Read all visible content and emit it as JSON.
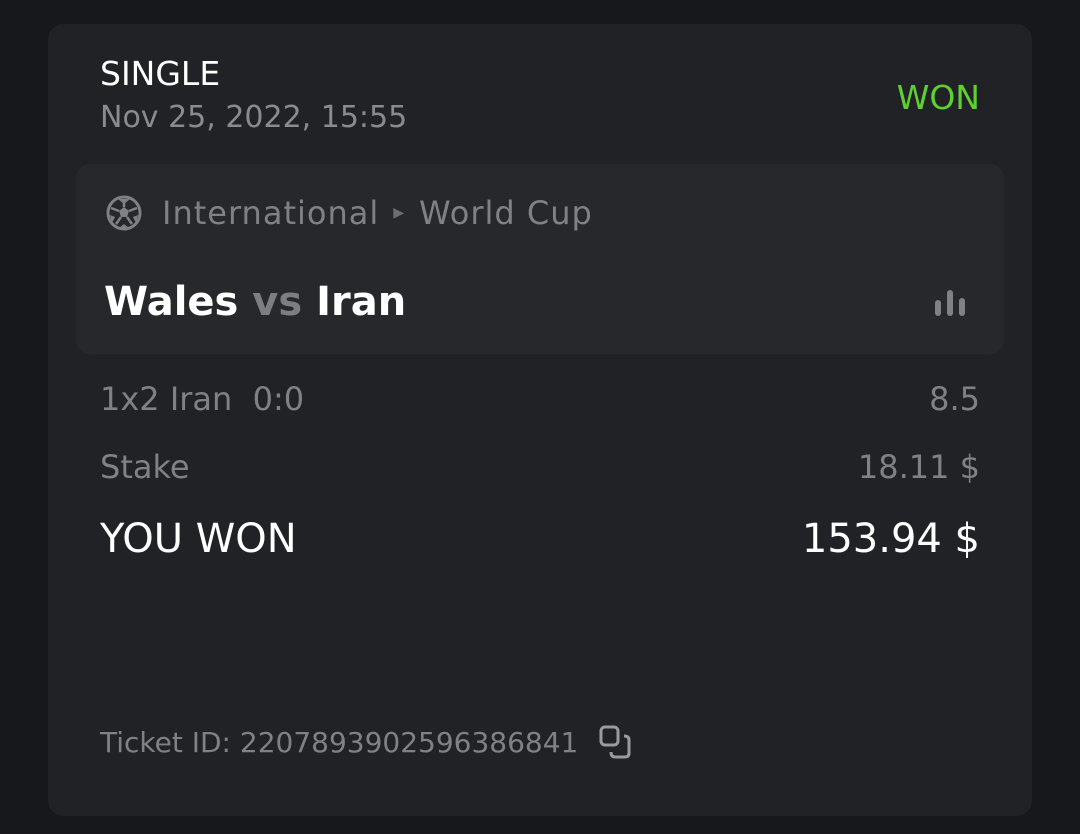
{
  "bet": {
    "type": "SINGLE",
    "date": "Nov 25, 2022, 15:55",
    "status": "WON",
    "status_color": "#5fd02f"
  },
  "event": {
    "sport_icon": "soccer-ball-icon",
    "category": "International",
    "tournament": "World Cup",
    "home": "Wales",
    "vs": "vs",
    "away": "Iran",
    "stats_icon": "bar-chart-icon"
  },
  "selection": {
    "market": "1x2 Iran",
    "score": "0:0",
    "odds": "8.5"
  },
  "stake": {
    "label": "Stake",
    "value": "18.11 $"
  },
  "won": {
    "label": "YOU WON",
    "value": "153.94 $"
  },
  "ticket": {
    "label": "Ticket ID: 2207893902596386841",
    "copy_icon": "copy-icon"
  }
}
